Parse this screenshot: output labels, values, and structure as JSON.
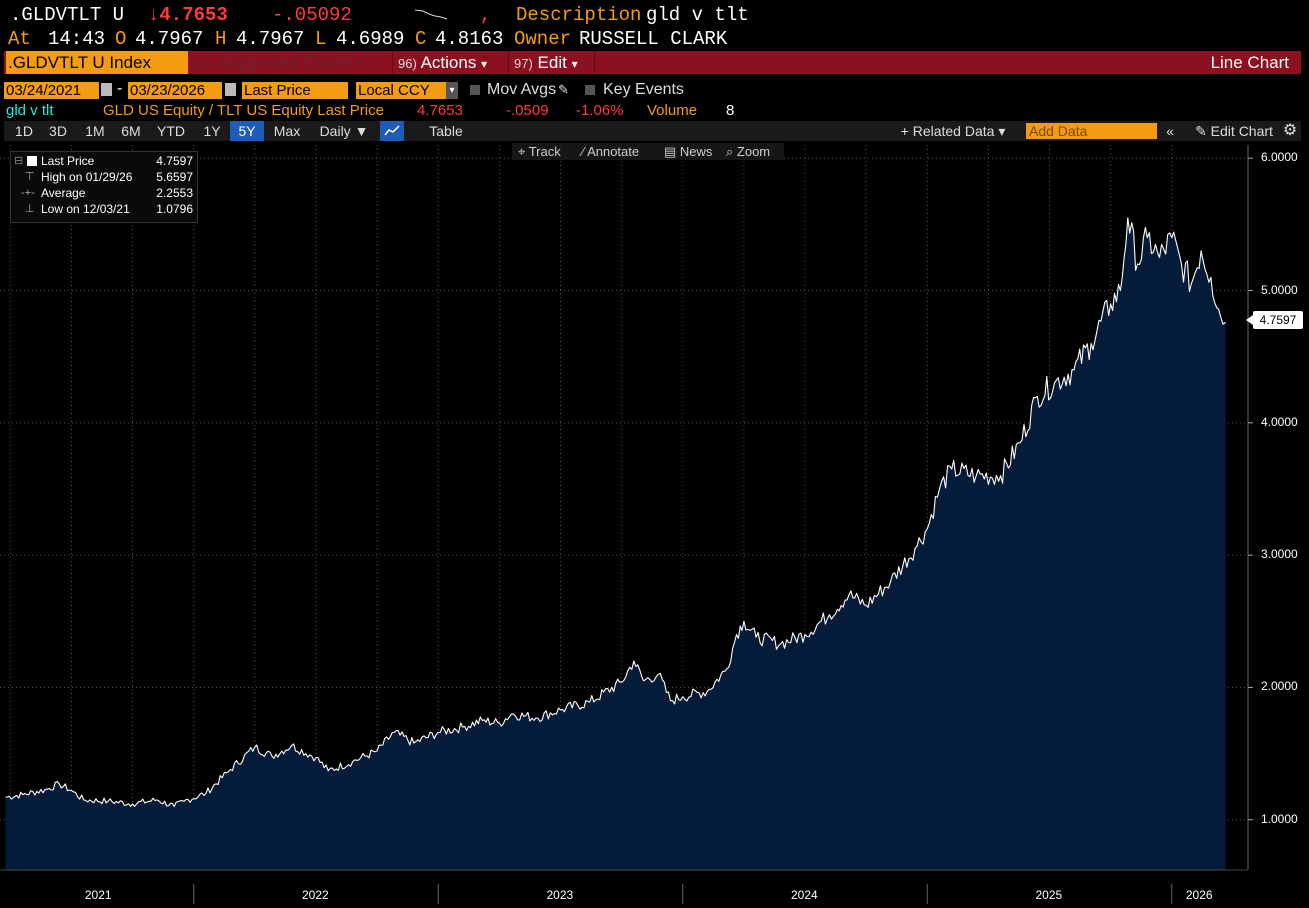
{
  "header": {
    "ticker": ".GLDVTLT U",
    "last": "↓4.7653",
    "change": "-.05092",
    "comma": ",",
    "description_label": "Description",
    "description": "gld v tlt",
    "at_label": "At",
    "time": "14:43",
    "open_label": "O",
    "open": "4.7967",
    "high_label": "H",
    "high": "4.7967",
    "low_label": "L",
    "low": "4.6989",
    "close_label": "C",
    "close": "4.8163",
    "owner_label": "Owner",
    "owner": "RUSSELL CLARK"
  },
  "menubar": {
    "security": ".GLDVTLT U Index",
    "suggested_num": "94)",
    "suggested": "Suggested Charts",
    "actions_num": "96)",
    "actions": "Actions",
    "edit_num": "97)",
    "edit": "Edit",
    "title": "Line Chart",
    "dropdown_arrow": "▾"
  },
  "controls": {
    "start_date": "03/24/2021",
    "dash": "-",
    "end_date": "03/23/2026",
    "field": "Last Price",
    "currency": "Local CCY",
    "mov_avgs": "Mov Avgs",
    "key_events": "Key Events"
  },
  "legend_row": {
    "name": "gld v tlt",
    "series": "GLD US Equity / TLT US Equity Last Price",
    "value": "4.7653",
    "change": "-.0509",
    "pct": "-1.06%",
    "volume_label": "Volume",
    "volume": "8"
  },
  "toolbar": {
    "periods": [
      "1D",
      "3D",
      "1M",
      "6M",
      "YTD",
      "1Y",
      "5Y",
      "Max"
    ],
    "active_period": "5Y",
    "frequency": "Daily ▼",
    "table": "Table",
    "related": "+ Related Data ▾",
    "add_data_placeholder": "Add Data",
    "collapse": "«",
    "edit_chart": "✎ Edit Chart",
    "gear": "⚙"
  },
  "trackbar": {
    "track": "⌖ Track",
    "annotate": "∕ Annotate",
    "news": "▤ News",
    "zoom": "⌕ Zoom"
  },
  "stats": {
    "last_label": "Last Price",
    "last_value": "4.7597",
    "high_label": "High on 01/29/26",
    "high_value": "5.6597",
    "avg_label": "Average",
    "avg_value": "2.2553",
    "low_label": "Low on 12/03/21",
    "low_value": "1.0796"
  },
  "colors": {
    "accent": "#f39c12",
    "menubar": "#8d1020",
    "area_fill": "#041c3a",
    "line": "#ffffff",
    "negative": "#ff3b3b"
  },
  "chart_data": {
    "type": "area",
    "series_name": "gld v tlt",
    "ylim": [
      0.62,
      6.1
    ],
    "yticks": [
      1.0,
      2.0,
      3.0,
      4.0,
      5.0,
      6.0
    ],
    "ytick_labels": [
      "1.0000",
      "2.0000",
      "3.0000",
      "4.0000",
      "5.0000",
      "6.0000"
    ],
    "xlim": [
      2021.224,
      2026.23
    ],
    "year_labels": [
      "2021",
      "2022",
      "2023",
      "2024",
      "2025",
      "2026"
    ],
    "last_price_tag": "4.7597",
    "points": [
      [
        2021.23,
        1.17
      ],
      [
        2021.3,
        1.19
      ],
      [
        2021.4,
        1.23
      ],
      [
        2021.45,
        1.27
      ],
      [
        2021.5,
        1.22
      ],
      [
        2021.55,
        1.15
      ],
      [
        2021.65,
        1.14
      ],
      [
        2021.75,
        1.12
      ],
      [
        2021.85,
        1.15
      ],
      [
        2021.92,
        1.1
      ],
      [
        2021.96,
        1.14
      ],
      [
        2022.05,
        1.2
      ],
      [
        2022.15,
        1.38
      ],
      [
        2022.25,
        1.55
      ],
      [
        2022.32,
        1.48
      ],
      [
        2022.4,
        1.56
      ],
      [
        2022.5,
        1.47
      ],
      [
        2022.55,
        1.37
      ],
      [
        2022.65,
        1.44
      ],
      [
        2022.75,
        1.52
      ],
      [
        2022.82,
        1.66
      ],
      [
        2022.9,
        1.58
      ],
      [
        2023.0,
        1.66
      ],
      [
        2023.1,
        1.7
      ],
      [
        2023.18,
        1.75
      ],
      [
        2023.25,
        1.73
      ],
      [
        2023.3,
        1.8
      ],
      [
        2023.4,
        1.77
      ],
      [
        2023.5,
        1.83
      ],
      [
        2023.62,
        1.89
      ],
      [
        2023.75,
        2.04
      ],
      [
        2023.8,
        2.2
      ],
      [
        2023.84,
        2.05
      ],
      [
        2023.9,
        2.1
      ],
      [
        2023.95,
        1.9
      ],
      [
        2024.0,
        1.93
      ],
      [
        2024.1,
        1.97
      ],
      [
        2024.18,
        2.14
      ],
      [
        2024.22,
        2.4
      ],
      [
        2024.25,
        2.5
      ],
      [
        2024.3,
        2.38
      ],
      [
        2024.4,
        2.33
      ],
      [
        2024.5,
        2.4
      ],
      [
        2024.6,
        2.55
      ],
      [
        2024.68,
        2.7
      ],
      [
        2024.75,
        2.62
      ],
      [
        2024.85,
        2.8
      ],
      [
        2024.95,
        3.05
      ],
      [
        2025.0,
        3.2
      ],
      [
        2025.05,
        3.5
      ],
      [
        2025.1,
        3.65
      ],
      [
        2025.2,
        3.6
      ],
      [
        2025.3,
        3.6
      ],
      [
        2025.38,
        3.85
      ],
      [
        2025.45,
        4.2
      ],
      [
        2025.52,
        4.3
      ],
      [
        2025.6,
        4.4
      ],
      [
        2025.67,
        4.6
      ],
      [
        2025.75,
        4.9
      ],
      [
        2025.79,
        5.0
      ],
      [
        2025.82,
        5.55
      ],
      [
        2025.86,
        5.2
      ],
      [
        2025.9,
        5.4
      ],
      [
        2025.95,
        5.25
      ],
      [
        2026.0,
        5.4
      ],
      [
        2026.04,
        5.2
      ],
      [
        2026.08,
        5.05
      ],
      [
        2026.12,
        5.3
      ],
      [
        2026.16,
        5.1
      ],
      [
        2026.2,
        4.8
      ],
      [
        2026.22,
        4.76
      ]
    ]
  }
}
